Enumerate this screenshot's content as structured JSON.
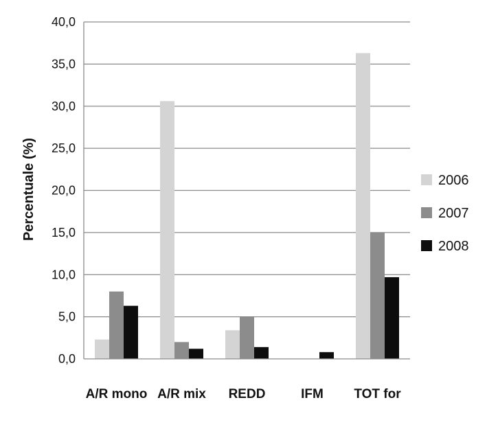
{
  "chart_data": {
    "type": "bar",
    "title": "",
    "xlabel": "",
    "ylabel": "Percentuale (%)",
    "ylim": [
      0,
      40
    ],
    "ytick_step": 5,
    "ytick_labels": [
      "0,0",
      "5,0",
      "10,0",
      "15,0",
      "20,0",
      "25,0",
      "30,0",
      "35,0",
      "40,0"
    ],
    "grid": true,
    "legend_position": "right",
    "categories": [
      "A/R mono",
      "A/R mix",
      "REDD",
      "IFM",
      "TOT for"
    ],
    "series": [
      {
        "name": "2006",
        "color": "#d4d4d4",
        "values": [
          2.3,
          30.6,
          3.4,
          0.0,
          36.3
        ]
      },
      {
        "name": "2007",
        "color": "#8c8c8c",
        "values": [
          8.0,
          2.0,
          5.0,
          0.0,
          15.0
        ]
      },
      {
        "name": "2008",
        "color": "#0d0d0d",
        "values": [
          6.3,
          1.2,
          1.4,
          0.8,
          9.7
        ]
      }
    ]
  }
}
